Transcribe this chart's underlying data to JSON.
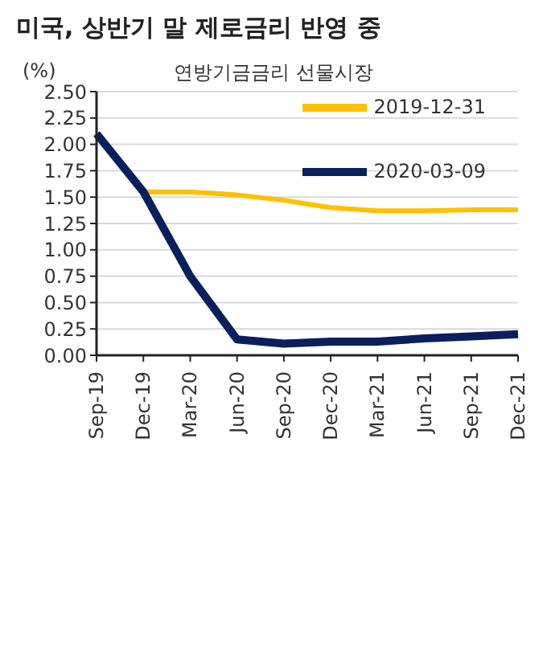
{
  "chart_data": {
    "type": "line",
    "title": "미국, 상반기 말 제로금리 반영 중",
    "subtitle": "연방기금금리 선물시장",
    "ylabel": "(%)",
    "categories": [
      "Sep-19",
      "Dec-19",
      "Mar-20",
      "Jun-20",
      "Sep-20",
      "Dec-20",
      "Mar-21",
      "Jun-21",
      "Sep-21",
      "Dec-21"
    ],
    "series": [
      {
        "name": "2019-12-31",
        "color": "#ffc000",
        "values": [
          null,
          1.55,
          1.55,
          1.52,
          1.47,
          1.4,
          1.37,
          1.37,
          1.38,
          1.38
        ]
      },
      {
        "name": "2020-03-09",
        "color": "#0a1f5c",
        "values": [
          2.1,
          1.55,
          0.75,
          0.15,
          0.11,
          0.13,
          0.13,
          0.16,
          0.18,
          0.2
        ]
      }
    ],
    "ylim": [
      0,
      2.5
    ],
    "yticks": [
      {
        "value": 0,
        "label": "0.00"
      },
      {
        "value": 0.25,
        "label": "0.25"
      },
      {
        "value": 0.5,
        "label": "0.50"
      },
      {
        "value": 0.75,
        "label": "0.75"
      },
      {
        "value": 1,
        "label": "1.00"
      },
      {
        "value": 1.25,
        "label": "1.25"
      },
      {
        "value": 1.5,
        "label": "1.50"
      },
      {
        "value": 1.75,
        "label": "1.75"
      },
      {
        "value": 2,
        "label": "2.00"
      },
      {
        "value": 2.25,
        "label": "2.25"
      },
      {
        "value": 2.5,
        "label": "2.50"
      }
    ],
    "grid": "y",
    "legend": "top right",
    "marker": "none",
    "line_style": "solid"
  }
}
